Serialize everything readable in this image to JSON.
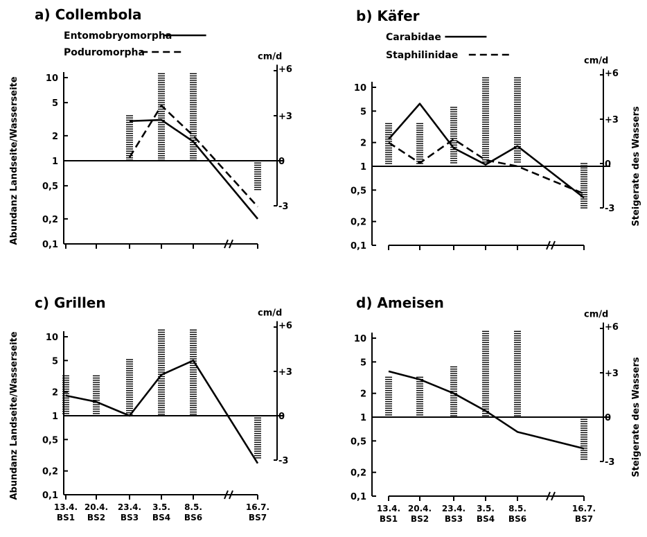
{
  "y_left_title": "Abundanz Landseite/Wasserseite",
  "y_right_title": "Steigerate des Wassers",
  "chart_data": [
    {
      "type": "line",
      "title": "a) Collembola",
      "x_tick_labels": [],
      "y_left_ticks": [
        "10",
        "5",
        "2",
        "1",
        "0,5",
        "0,2",
        "0,1"
      ],
      "y_right_unit": "cm/d",
      "y_right_ticks": [
        "+6",
        "+3",
        "0",
        "-3"
      ],
      "y_right_range": [
        -3,
        6
      ],
      "y_left_scale": "log",
      "y_left_range": [
        0.1,
        10
      ],
      "show_left_title": true,
      "show_right_title": false,
      "series": [
        {
          "name": "Entomobryomorpha",
          "style": "solid",
          "x_index": [
            2,
            3,
            4,
            6
          ],
          "values": [
            3.0,
            3.1,
            1.7,
            0.2
          ]
        },
        {
          "name": "Poduromorpha",
          "style": "dashed",
          "x_index": [
            2,
            3,
            4,
            6
          ],
          "values": [
            1.1,
            4.6,
            2.0,
            0.28
          ]
        }
      ],
      "bars": {
        "description": "water rise rate (cm/d), hatched",
        "x_index": [
          2,
          3,
          4,
          6
        ],
        "values": [
          3.0,
          5.8,
          5.8,
          -2.0
        ]
      }
    },
    {
      "type": "line",
      "title": "b) Käfer",
      "x_tick_labels": [],
      "y_left_ticks": [
        "10",
        "5",
        "2",
        "1",
        "0,5",
        "0,2",
        "0,1"
      ],
      "y_right_unit": "cm/d",
      "y_right_ticks": [
        "+6",
        "+3",
        "0",
        "-3"
      ],
      "y_right_range": [
        -3,
        6
      ],
      "y_left_scale": "log",
      "y_left_range": [
        0.1,
        10
      ],
      "show_left_title": false,
      "show_right_title": true,
      "series": [
        {
          "name": "Carabidae",
          "style": "solid",
          "x_index": [
            0,
            1,
            2,
            3,
            4,
            6
          ],
          "values": [
            2.2,
            6.2,
            1.7,
            1.05,
            1.8,
            0.4
          ]
        },
        {
          "name": "Staphilinidae",
          "style": "dashed",
          "x_index": [
            0,
            1,
            2,
            3,
            4,
            6
          ],
          "values": [
            2.0,
            1.1,
            2.2,
            1.2,
            1.0,
            0.45
          ]
        }
      ],
      "bars": {
        "description": "water rise rate (cm/d), hatched",
        "x_index": [
          0,
          1,
          2,
          3,
          4,
          6
        ],
        "values": [
          2.7,
          2.7,
          3.8,
          5.8,
          5.8,
          -3.0
        ]
      }
    },
    {
      "type": "line",
      "title": "c) Grillen",
      "x_tick_labels": [
        "13.4. BS1",
        "20.4. BS2",
        "23.4. BS3",
        "3.5. BS4",
        "8.5. BS6",
        "",
        "16.7. BS7"
      ],
      "y_left_ticks": [
        "10",
        "5",
        "2",
        "1",
        "0,5",
        "0,2",
        "0,1"
      ],
      "y_right_unit": "cm/d",
      "y_right_ticks": [
        "+6",
        "+3",
        "0",
        "-3"
      ],
      "y_right_range": [
        -3,
        6
      ],
      "y_left_scale": "log",
      "y_left_range": [
        0.1,
        10
      ],
      "show_left_title": true,
      "show_right_title": false,
      "series": [
        {
          "name": "Grillen",
          "style": "solid",
          "x_index": [
            0,
            1,
            2,
            3,
            4,
            6
          ],
          "values": [
            1.8,
            1.5,
            1.0,
            3.3,
            5.0,
            0.25
          ]
        }
      ],
      "bars": {
        "description": "water rise rate (cm/d), hatched",
        "x_index": [
          0,
          1,
          2,
          3,
          4,
          6
        ],
        "values": [
          2.7,
          2.7,
          3.8,
          5.8,
          5.8,
          -3.0
        ]
      }
    },
    {
      "type": "line",
      "title": "d) Ameisen",
      "x_tick_labels": [
        "13.4. BS1",
        "20.4. BS2",
        "23.4. BS3",
        "3.5. BS4",
        "8.5. BS6",
        "",
        "16.7. BS7"
      ],
      "y_left_ticks": [
        "10",
        "5",
        "2",
        "1",
        "0,5",
        "0,2",
        "0,1"
      ],
      "y_right_unit": "cm/d",
      "y_right_ticks": [
        "+6",
        "+3",
        "0",
        "-3"
      ],
      "y_right_range": [
        -3,
        6
      ],
      "y_left_scale": "log",
      "y_left_range": [
        0.1,
        10
      ],
      "show_left_title": false,
      "show_right_title": true,
      "series": [
        {
          "name": "Ameisen",
          "style": "solid",
          "x_index": [
            0,
            1,
            2,
            3,
            4,
            6
          ],
          "values": [
            3.8,
            3.0,
            2.0,
            1.2,
            0.65,
            0.4
          ]
        }
      ],
      "bars": {
        "description": "water rise rate (cm/d), hatched",
        "x_index": [
          0,
          1,
          2,
          3,
          4,
          6
        ],
        "values": [
          2.7,
          2.7,
          3.4,
          5.8,
          5.8,
          -3.0
        ]
      }
    }
  ]
}
